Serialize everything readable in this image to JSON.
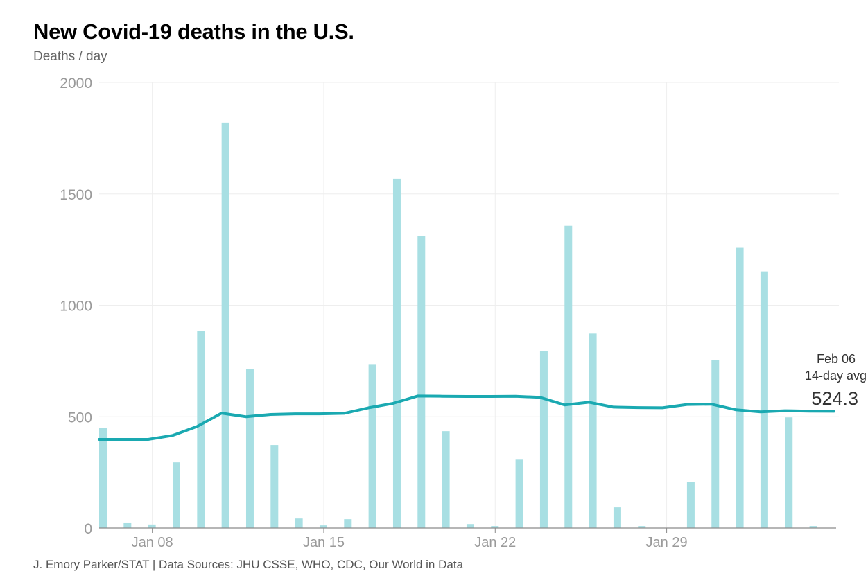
{
  "header": {
    "title": "New Covid-19 deaths in the U.S.",
    "subtitle": "Deaths / day"
  },
  "footer": {
    "credit": "J. Emory Parker/STAT | Data Sources: JHU CSSE, WHO, CDC, Our World in Data"
  },
  "colors": {
    "bar": "#a8dfe3",
    "line": "#1aa9b1",
    "grid": "#eeeeee",
    "axis": "#8a8a8a"
  },
  "annotation": {
    "date": "Feb 06",
    "label": "14-day avg",
    "value": "524.3"
  },
  "chart_data": {
    "type": "bar",
    "title": "New Covid-19 deaths in the U.S.",
    "subtitle": "Deaths / day",
    "xlabel": "",
    "ylabel": "Deaths / day",
    "ylim": [
      0,
      2000
    ],
    "yticks": [
      0,
      500,
      1000,
      1500,
      2000
    ],
    "grid": true,
    "x_tick_labels": [
      {
        "label": "Jan 08",
        "day_index": 2
      },
      {
        "label": "Jan 15",
        "day_index": 9
      },
      {
        "label": "Jan 22",
        "day_index": 16
      },
      {
        "label": "Jan 29",
        "day_index": 23
      }
    ],
    "categories": [
      "Jan 06",
      "Jan 07",
      "Jan 08",
      "Jan 09",
      "Jan 10",
      "Jan 11",
      "Jan 12",
      "Jan 13",
      "Jan 14",
      "Jan 15",
      "Jan 16",
      "Jan 17",
      "Jan 18",
      "Jan 19",
      "Jan 20",
      "Jan 21",
      "Jan 22",
      "Jan 23",
      "Jan 24",
      "Jan 25",
      "Jan 26",
      "Jan 27",
      "Jan 28",
      "Jan 29",
      "Jan 30",
      "Jan 31",
      "Feb 01",
      "Feb 02",
      "Feb 03",
      "Feb 04",
      "Feb 05"
    ],
    "series": [
      {
        "name": "Daily deaths",
        "type": "bar",
        "values": [
          450,
          25,
          16,
          295,
          885,
          1820,
          714,
          373,
          43,
          12,
          40,
          736,
          1568,
          1311,
          435,
          18,
          9,
          307,
          795,
          1357,
          873,
          93,
          9,
          0,
          208,
          755,
          1258,
          1152,
          497,
          9,
          null
        ]
      },
      {
        "name": "14-day avg",
        "type": "line",
        "values": [
          398,
          398,
          398,
          416,
          456,
          516,
          500,
          510,
          513,
          513,
          515,
          540,
          560,
          593,
          592,
          591,
          591,
          592,
          587,
          553,
          565,
          543,
          541,
          540,
          555,
          556,
          531,
          522,
          527,
          525,
          524.3
        ]
      }
    ],
    "annotation": {
      "text": [
        "Feb 06",
        "14-day avg",
        "524.3"
      ],
      "position": "right-end of line"
    }
  }
}
